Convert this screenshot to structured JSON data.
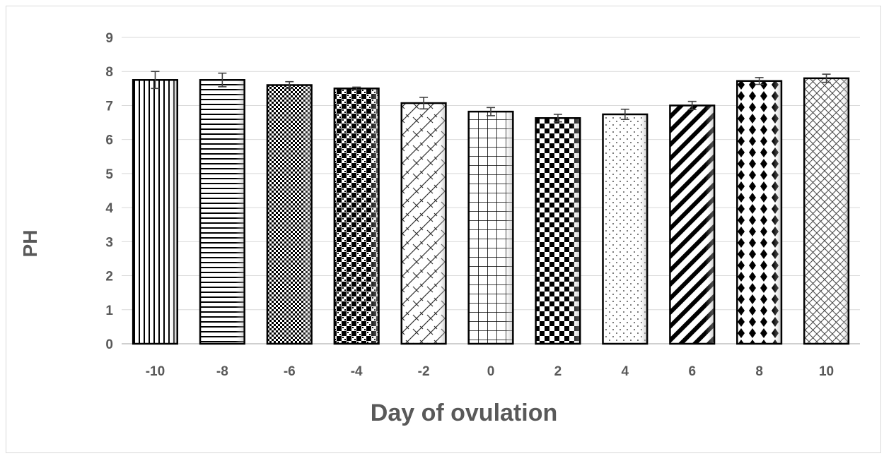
{
  "chart_data": {
    "type": "bar",
    "title": "",
    "xlabel": "Day of ovulation",
    "ylabel": "PH",
    "categories": [
      "-10",
      "-8",
      "-6",
      "-4",
      "-2",
      "0",
      "2",
      "4",
      "6",
      "8",
      "10"
    ],
    "values": [
      7.75,
      7.75,
      7.6,
      7.5,
      7.07,
      6.82,
      6.63,
      6.74,
      7.0,
      7.72,
      7.8
    ],
    "error": [
      0.25,
      0.2,
      0.1,
      0.04,
      0.17,
      0.12,
      0.11,
      0.15,
      0.12,
      0.1,
      0.12
    ],
    "yticks": [
      "0",
      "1",
      "2",
      "3",
      "4",
      "5",
      "6",
      "7",
      "8",
      "9"
    ],
    "ylim": [
      0,
      9
    ],
    "grid": true,
    "legend": "none",
    "colors": {
      "bar_stroke": "#000000",
      "grid": "#d9d9d9",
      "text": "#595959",
      "error_bar": "#404040"
    },
    "patterns": [
      "vertical-lines",
      "horizontal-lines",
      "small-checker",
      "large-checker",
      "weave",
      "grid",
      "checkerboard",
      "dots",
      "diagonal-stripes",
      "diamonds",
      "crosshatch"
    ]
  }
}
